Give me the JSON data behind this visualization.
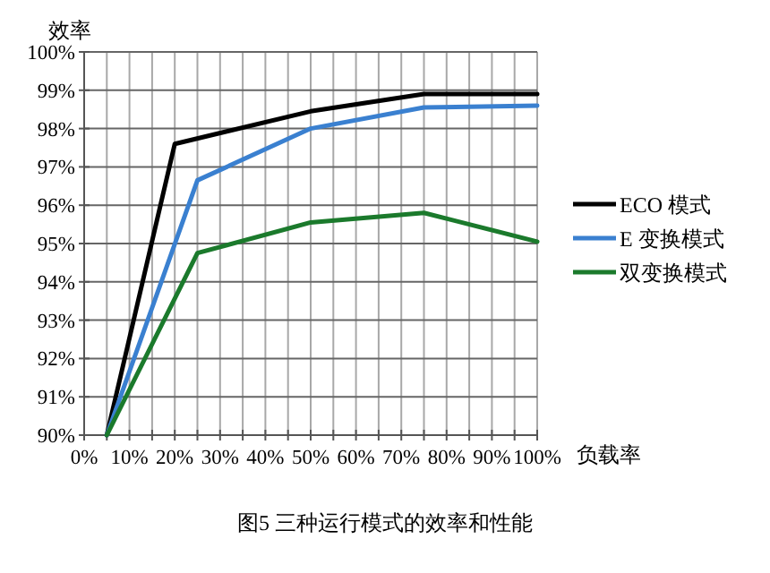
{
  "chart_data": {
    "type": "line",
    "ylabel": "效率",
    "xlabel": "负载率",
    "xlim": [
      0,
      100
    ],
    "ylim": [
      90,
      100
    ],
    "xticks": [
      {
        "value": 0,
        "label": "0%"
      },
      {
        "value": 5,
        "label": null
      },
      {
        "value": 10,
        "label": "10%"
      },
      {
        "value": 15,
        "label": null
      },
      {
        "value": 20,
        "label": "20%"
      },
      {
        "value": 25,
        "label": null
      },
      {
        "value": 30,
        "label": "30%"
      },
      {
        "value": 35,
        "label": null
      },
      {
        "value": 40,
        "label": "40%"
      },
      {
        "value": 45,
        "label": null
      },
      {
        "value": 50,
        "label": "50%"
      },
      {
        "value": 55,
        "label": null
      },
      {
        "value": 60,
        "label": "60%"
      },
      {
        "value": 65,
        "label": null
      },
      {
        "value": 70,
        "label": "70%"
      },
      {
        "value": 75,
        "label": null
      },
      {
        "value": 80,
        "label": "80%"
      },
      {
        "value": 85,
        "label": null
      },
      {
        "value": 90,
        "label": "90%"
      },
      {
        "value": 95,
        "label": null
      },
      {
        "value": 100,
        "label": "100%"
      }
    ],
    "yticks": [
      {
        "value": 90,
        "label": "90%"
      },
      {
        "value": 91,
        "label": "91%"
      },
      {
        "value": 92,
        "label": "92%"
      },
      {
        "value": 93,
        "label": "93%"
      },
      {
        "value": 94,
        "label": "94%"
      },
      {
        "value": 95,
        "label": "95%"
      },
      {
        "value": 96,
        "label": "96%"
      },
      {
        "value": 97,
        "label": "97%"
      },
      {
        "value": 98,
        "label": "98%"
      },
      {
        "value": 99,
        "label": "99%"
      },
      {
        "value": 100,
        "label": "100%"
      }
    ],
    "grid": true,
    "legend": "right",
    "series": [
      {
        "name": "ECO 模式",
        "color": "#000000",
        "x": [
          5,
          20,
          50,
          75,
          100
        ],
        "values": [
          90,
          97.6,
          98.45,
          98.9,
          98.9
        ]
      },
      {
        "name": "E 变换模式",
        "color": "#3a80d0",
        "x": [
          5,
          25,
          50,
          75,
          100
        ],
        "values": [
          90,
          96.65,
          98.0,
          98.55,
          98.6
        ]
      },
      {
        "name": "双变换模式",
        "color": "#1b7a2c",
        "x": [
          5,
          25,
          50,
          75,
          100
        ],
        "values": [
          90,
          94.75,
          95.55,
          95.8,
          95.05
        ]
      }
    ],
    "annotations": [
      "图5 三种运行模式的效率和性能"
    ]
  }
}
